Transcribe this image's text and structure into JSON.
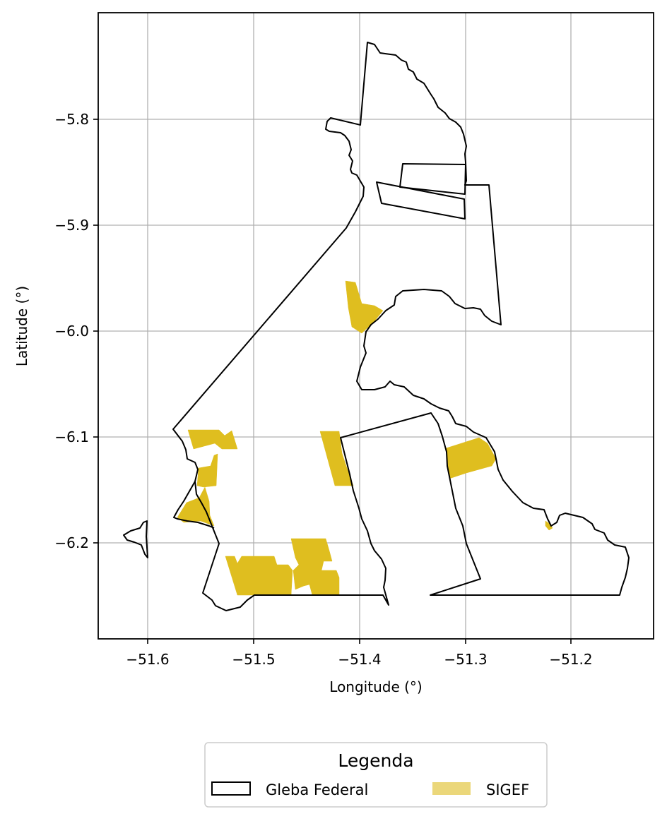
{
  "map": {
    "xlabel": "Longitude (°)",
    "ylabel": "Latitude (°)",
    "xlim": [
      -51.65,
      -51.12
    ],
    "ylim": [
      -6.29,
      -5.7
    ],
    "x_ticks": [
      -51.6,
      -51.5,
      -51.4,
      -51.3,
      -51.2
    ],
    "y_ticks": [
      -5.8,
      -5.9,
      -6.0,
      -6.1,
      -6.2
    ],
    "x_tick_labels": [
      "−51.6",
      "−51.5",
      "−51.4",
      "−51.3",
      "−51.2"
    ],
    "y_tick_labels": [
      "−5.8",
      "−5.9",
      "−6.0",
      "−6.1",
      "−6.2"
    ],
    "grid": true,
    "colors": {
      "gleba_stroke": "#000000",
      "sigef_fill": "#DFBE1F",
      "sigef_legend_fill": "#EBD77A",
      "grid": "#b0b0b0"
    }
  },
  "legend": {
    "title": "Legenda",
    "placement": "bottom-center",
    "items": [
      {
        "label": "Gleba Federal",
        "symbol": "outline"
      },
      {
        "label": "SIGEF",
        "symbol": "fill"
      }
    ]
  }
}
